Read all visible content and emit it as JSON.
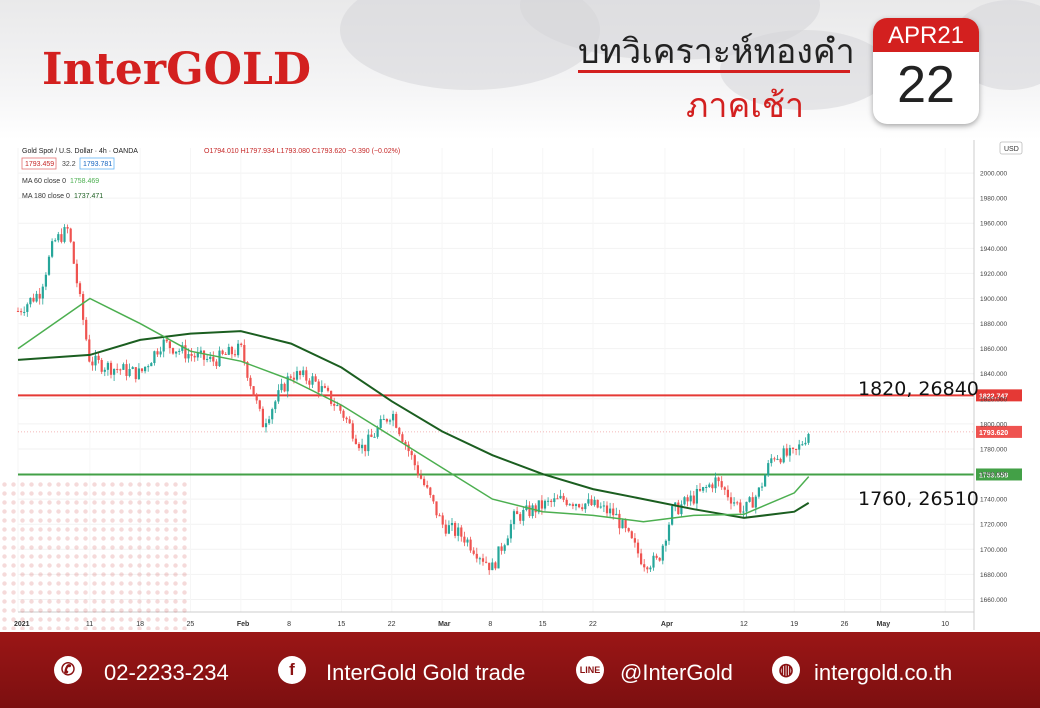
{
  "header": {
    "logo": "InterGOLD",
    "title_main": "บทวิเคราะห์ทองคำ",
    "title_sub": "ภาคเช้า",
    "calendar_month": "APR21",
    "calendar_day": "22"
  },
  "legend": {
    "symbol": "Gold Spot / U.S. Dollar · 4h · OANDA",
    "ohlc": "O1794.010 H1797.934 L1793.080 C1793.620 −0.390 (−0.02%)",
    "bid": "1793.459",
    "spread": "32.2",
    "ask": "1793.781",
    "ma60_label": "MA 60 close 0",
    "ma60_value": "1758.469",
    "ma180_label": "MA 180 close 0",
    "ma180_value": "1737.471",
    "currency": "USD"
  },
  "annotations": {
    "resistance_text": "1820, 26840",
    "support_text": "1760, 26510"
  },
  "footer": {
    "phone": "02-2233-234",
    "facebook": "InterGold Gold trade",
    "line": "@InterGold",
    "web": "intergold.co.th"
  },
  "colors": {
    "brand_red": "#d3201f",
    "up_candle": "#26a69a",
    "down_candle": "#ef5350",
    "ma60": "#4caf50",
    "ma180": "#1b5e20",
    "resistance_line": "#e53935",
    "support_line": "#43a047"
  },
  "chart_data": {
    "type": "candlestick",
    "title": "Gold Spot / U.S. Dollar · 4h · OANDA",
    "ylim": [
      1650,
      2020
    ],
    "y_ticks": [
      1660,
      1680,
      1700,
      1720,
      1740,
      1760,
      1780,
      1800,
      1820,
      1840,
      1860,
      1880,
      1900,
      1920,
      1940,
      1960,
      1980,
      2000
    ],
    "x_ticks": [
      "2021",
      "11",
      "18",
      "25",
      "Feb",
      "8",
      "15",
      "22",
      "Mar",
      "8",
      "15",
      "22",
      "Apr",
      "12",
      "19",
      "26",
      "May",
      "10"
    ],
    "horizontal_levels": [
      {
        "value": 1822.747,
        "label": "1822.747"
      },
      {
        "value": 1759.658,
        "label": "1759.658"
      }
    ],
    "last_price": {
      "value": 1793.62,
      "label": "1793.620"
    },
    "close_series": {
      "name": "close",
      "x": [
        "2021-01-01",
        "2021-01-04",
        "2021-01-06",
        "2021-01-08",
        "2021-01-11",
        "2021-01-14",
        "2021-01-18",
        "2021-01-21",
        "2021-01-25",
        "2021-01-28",
        "2021-02-01",
        "2021-02-04",
        "2021-02-08",
        "2021-02-11",
        "2021-02-15",
        "2021-02-18",
        "2021-02-22",
        "2021-02-25",
        "2021-03-01",
        "2021-03-04",
        "2021-03-08",
        "2021-03-11",
        "2021-03-15",
        "2021-03-18",
        "2021-03-22",
        "2021-03-25",
        "2021-03-29",
        "2021-03-31",
        "2021-04-02",
        "2021-04-06",
        "2021-04-08",
        "2021-04-12",
        "2021-04-14",
        "2021-04-16",
        "2021-04-19",
        "2021-04-21"
      ],
      "values": [
        1890,
        1905,
        1945,
        1955,
        1850,
        1845,
        1840,
        1865,
        1855,
        1850,
        1860,
        1800,
        1840,
        1835,
        1810,
        1780,
        1810,
        1770,
        1720,
        1710,
        1685,
        1725,
        1735,
        1740,
        1735,
        1728,
        1690,
        1690,
        1730,
        1745,
        1755,
        1730,
        1745,
        1775,
        1775,
        1794
      ]
    },
    "ma60": {
      "name": "MA 60 close 0",
      "x": [
        "2021-01-01",
        "2021-01-11",
        "2021-01-18",
        "2021-01-25",
        "2021-02-01",
        "2021-02-08",
        "2021-02-15",
        "2021-02-22",
        "2021-03-01",
        "2021-03-08",
        "2021-03-15",
        "2021-03-22",
        "2021-03-29",
        "2021-04-05",
        "2021-04-12",
        "2021-04-19",
        "2021-04-21"
      ],
      "values": [
        1860,
        1900,
        1880,
        1858,
        1850,
        1835,
        1815,
        1790,
        1765,
        1740,
        1730,
        1727,
        1722,
        1727,
        1728,
        1745,
        1758
      ]
    },
    "ma180": {
      "name": "MA 180 close 0",
      "x": [
        "2021-01-01",
        "2021-01-11",
        "2021-01-18",
        "2021-01-25",
        "2021-02-01",
        "2021-02-08",
        "2021-02-15",
        "2021-02-22",
        "2021-03-01",
        "2021-03-08",
        "2021-03-15",
        "2021-03-22",
        "2021-03-29",
        "2021-04-05",
        "2021-04-12",
        "2021-04-19",
        "2021-04-21"
      ],
      "values": [
        1851,
        1855,
        1867,
        1872,
        1874,
        1864,
        1845,
        1818,
        1794,
        1775,
        1760,
        1748,
        1740,
        1732,
        1725,
        1730,
        1737
      ]
    }
  }
}
